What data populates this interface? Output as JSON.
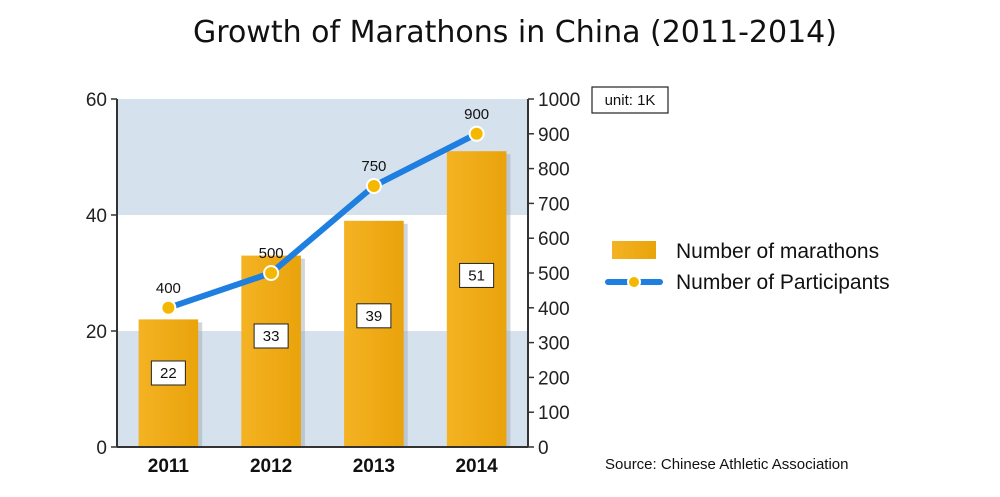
{
  "chart_data": {
    "type": "bar+line",
    "title": "Growth of Marathons in China (2011-2014)",
    "categories": [
      "2011",
      "2012",
      "2013",
      "2014"
    ],
    "series": [
      {
        "name": "Number of marathons",
        "type": "bar",
        "axis": "left",
        "values": [
          22,
          33,
          39,
          51
        ],
        "color": "#f0a80e"
      },
      {
        "name": "Number of Participants",
        "type": "line",
        "axis": "right",
        "values": [
          400,
          500,
          750,
          900
        ],
        "color": "#1e7fe0",
        "marker_color": "#f5b800"
      }
    ],
    "left_axis": {
      "ylim": [
        0,
        60
      ],
      "ticks": [
        "0",
        "20",
        "40",
        "60"
      ]
    },
    "right_axis": {
      "ylim": [
        0,
        1000
      ],
      "ticks": [
        "0",
        "100",
        "200",
        "300",
        "400",
        "500",
        "600",
        "700",
        "800",
        "900",
        "1000"
      ]
    },
    "unit_note": "unit: 1K",
    "source": "Source: Chinese Athletic Association",
    "legend_position": "right",
    "band_color": "#d5e2ee"
  }
}
